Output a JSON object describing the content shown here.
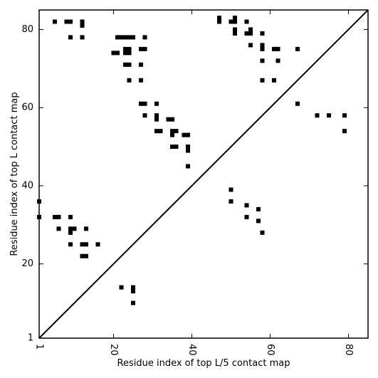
{
  "chart_data": {
    "type": "scatter",
    "title": "",
    "xlabel": "Residue index of top L/5 contact map",
    "ylabel": "Residue index of top L contact map",
    "xlim": [
      1,
      85
    ],
    "ylim": [
      1,
      85
    ],
    "x_ticks": [
      1,
      20,
      40,
      60,
      80
    ],
    "y_ticks": [
      1,
      20,
      40,
      60,
      80
    ],
    "x_tick_labels": [
      "1",
      "20",
      "40",
      "60",
      "80"
    ],
    "y_tick_labels": [
      "1",
      "20",
      "40",
      "60",
      "80"
    ],
    "x_tick_rotation": -90,
    "grid": false,
    "legend": "none",
    "marker": "square",
    "marker_color": "#000000",
    "diagonal": {
      "from": [
        1,
        1
      ],
      "to": [
        85,
        85
      ],
      "color": "#000000"
    },
    "series": [
      {
        "values": [
          [
            5,
            82
          ],
          [
            8,
            82
          ],
          [
            9,
            82
          ],
          [
            12,
            82
          ],
          [
            12,
            81
          ],
          [
            9,
            78
          ],
          [
            12,
            78
          ],
          [
            20,
            74
          ],
          [
            21,
            74
          ],
          [
            21,
            78
          ],
          [
            22,
            78
          ],
          [
            23,
            78
          ],
          [
            24,
            78
          ],
          [
            25,
            78
          ],
          [
            23,
            75
          ],
          [
            24,
            75
          ],
          [
            23,
            74
          ],
          [
            24,
            74
          ],
          [
            27,
            75
          ],
          [
            28,
            75
          ],
          [
            28,
            78
          ],
          [
            23,
            71
          ],
          [
            24,
            71
          ],
          [
            27,
            71
          ],
          [
            24,
            67
          ],
          [
            27,
            67
          ],
          [
            27,
            61
          ],
          [
            28,
            61
          ],
          [
            31,
            61
          ],
          [
            28,
            58
          ],
          [
            31,
            58
          ],
          [
            31,
            57
          ],
          [
            34,
            57
          ],
          [
            35,
            57
          ],
          [
            31,
            54
          ],
          [
            32,
            54
          ],
          [
            35,
            54
          ],
          [
            36,
            54
          ],
          [
            35,
            53
          ],
          [
            38,
            53
          ],
          [
            39,
            53
          ],
          [
            35,
            50
          ],
          [
            36,
            50
          ],
          [
            39,
            50
          ],
          [
            39,
            49
          ],
          [
            39,
            45
          ],
          [
            47,
            83
          ],
          [
            47,
            82
          ],
          [
            50,
            82
          ],
          [
            51,
            82
          ],
          [
            51,
            83
          ],
          [
            51,
            80
          ],
          [
            51,
            79
          ],
          [
            54,
            82
          ],
          [
            54,
            79
          ],
          [
            55,
            79
          ],
          [
            55,
            80
          ],
          [
            58,
            79
          ],
          [
            55,
            76
          ],
          [
            58,
            76
          ],
          [
            58,
            75
          ],
          [
            61,
            75
          ],
          [
            62,
            75
          ],
          [
            58,
            72
          ],
          [
            62,
            72
          ],
          [
            67,
            75
          ],
          [
            58,
            67
          ],
          [
            61,
            67
          ],
          [
            67,
            61
          ],
          [
            72,
            58
          ],
          [
            75,
            58
          ],
          [
            79,
            58
          ],
          [
            79,
            54
          ],
          [
            1,
            36
          ],
          [
            1,
            32
          ],
          [
            5,
            32
          ],
          [
            6,
            32
          ],
          [
            9,
            32
          ],
          [
            6,
            29
          ],
          [
            9,
            29
          ],
          [
            10,
            29
          ],
          [
            9,
            28
          ],
          [
            13,
            29
          ],
          [
            9,
            25
          ],
          [
            12,
            25
          ],
          [
            13,
            25
          ],
          [
            16,
            25
          ],
          [
            12,
            22
          ],
          [
            13,
            22
          ],
          [
            22,
            14
          ],
          [
            25,
            14
          ],
          [
            25,
            13
          ],
          [
            25,
            10
          ],
          [
            50,
            39
          ],
          [
            50,
            36
          ],
          [
            54,
            35
          ],
          [
            57,
            34
          ],
          [
            54,
            32
          ],
          [
            57,
            31
          ],
          [
            58,
            28
          ]
        ]
      }
    ]
  }
}
